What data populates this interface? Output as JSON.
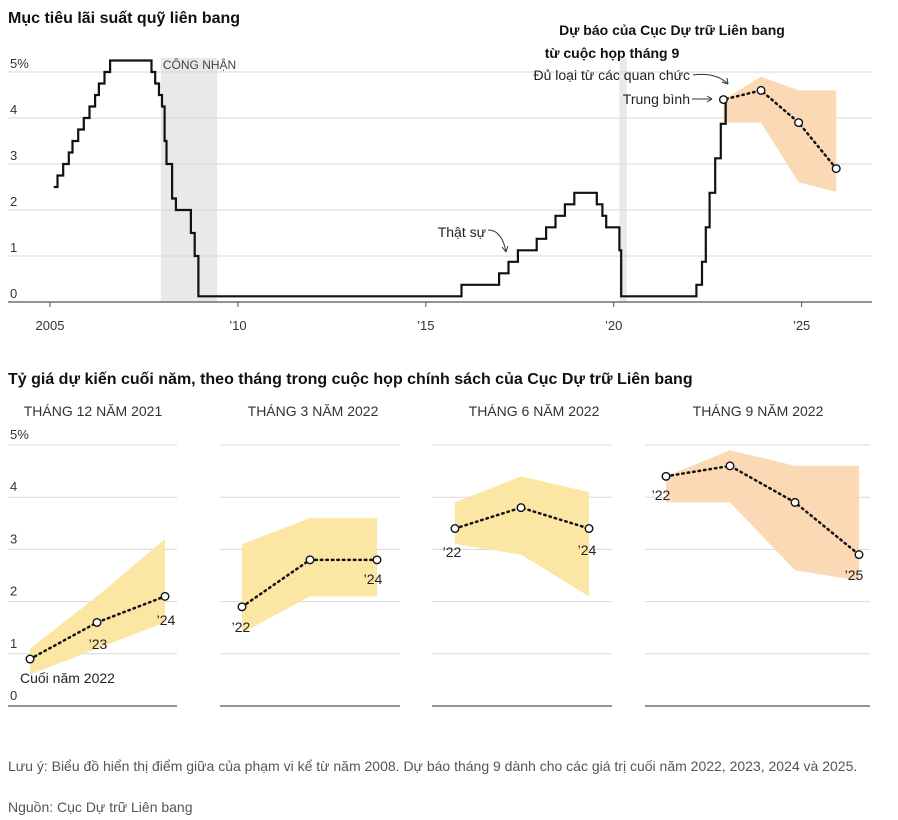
{
  "title": "Mục tiêu lãi suất quỹ liên bang",
  "subtitle": "Tỷ giá dự kiến cuối năm, theo tháng trong cuộc họp chính sách của Cục Dự trữ Liên bang",
  "note": "Lưu ý: Biểu đồ hiển thị điểm giữa của phạm vi kể từ năm 2008. Dự báo tháng 9 dành cho các giá trị cuối năm 2022, 2023, 2024 và 2025.",
  "source": "Nguồn: Cục Dự trữ Liên bang",
  "colors": {
    "line": "#111111",
    "recession": "#e8e9eb",
    "range_orange": "#fbd9b4",
    "range_yellow": "#fbe7a3",
    "grid": "#d8d8d8"
  },
  "chart_data": [
    {
      "type": "line",
      "title": "Mục tiêu lãi suất quỹ liên bang",
      "ylim": [
        0,
        5
      ],
      "y_ticks": [
        "5%",
        "4",
        "3",
        "2",
        "1",
        "0"
      ],
      "xlim": [
        2004.8,
        2027.0
      ],
      "x_ticks": [
        {
          "value": 2005,
          "label": "2005"
        },
        {
          "value": 2010,
          "label": "’10"
        },
        {
          "value": 2015,
          "label": "’15"
        },
        {
          "value": 2020,
          "label": "’20"
        },
        {
          "value": 2025,
          "label": "’25"
        }
      ],
      "shaded": [
        {
          "start": 2007.95,
          "end": 2009.45,
          "label": "CÔNG NHẬN"
        },
        {
          "start": 2020.15,
          "end": 2020.35,
          "label": ""
        }
      ],
      "actual_label": "Thật sự",
      "actual": [
        [
          2005.1,
          2.5
        ],
        [
          2005.2,
          2.75
        ],
        [
          2005.35,
          3.0
        ],
        [
          2005.5,
          3.25
        ],
        [
          2005.6,
          3.5
        ],
        [
          2005.75,
          3.75
        ],
        [
          2005.9,
          4.0
        ],
        [
          2006.05,
          4.25
        ],
        [
          2006.2,
          4.5
        ],
        [
          2006.3,
          4.75
        ],
        [
          2006.45,
          5.0
        ],
        [
          2006.6,
          5.25
        ],
        [
          2007.6,
          5.25
        ],
        [
          2007.7,
          5.0
        ],
        [
          2007.8,
          4.75
        ],
        [
          2007.9,
          4.5
        ],
        [
          2007.98,
          4.25
        ],
        [
          2008.05,
          3.5
        ],
        [
          2008.1,
          3.0
        ],
        [
          2008.25,
          2.25
        ],
        [
          2008.35,
          2.0
        ],
        [
          2008.75,
          1.5
        ],
        [
          2008.85,
          1.0
        ],
        [
          2008.95,
          0.125
        ],
        [
          2015.95,
          0.375
        ],
        [
          2016.95,
          0.625
        ],
        [
          2017.2,
          0.875
        ],
        [
          2017.45,
          1.125
        ],
        [
          2017.95,
          1.375
        ],
        [
          2018.2,
          1.625
        ],
        [
          2018.45,
          1.875
        ],
        [
          2018.7,
          2.125
        ],
        [
          2018.95,
          2.375
        ],
        [
          2019.55,
          2.125
        ],
        [
          2019.7,
          1.875
        ],
        [
          2019.8,
          1.625
        ],
        [
          2020.15,
          1.125
        ],
        [
          2020.2,
          0.125
        ],
        [
          2022.2,
          0.375
        ],
        [
          2022.35,
          0.875
        ],
        [
          2022.45,
          1.625
        ],
        [
          2022.55,
          2.375
        ],
        [
          2022.7,
          3.125
        ],
        [
          2022.85,
          3.875
        ],
        [
          2022.98,
          4.375
        ]
      ],
      "median_label": "Trung bình",
      "range_label": "Đủ loại từ các quan chức",
      "projection_title": [
        "Dự báo của Cục Dự trữ Liên bang",
        "từ cuộc họp tháng 9"
      ],
      "median": [
        {
          "x": 2023.0,
          "y": 4.4
        },
        {
          "x": 2024.0,
          "y": 4.6
        },
        {
          "x": 2025.0,
          "y": 3.9
        },
        {
          "x": 2026.0,
          "y": 2.9
        }
      ],
      "range": [
        {
          "x": 2023.0,
          "lo": 3.9,
          "hi": 4.4
        },
        {
          "x": 2024.0,
          "lo": 3.9,
          "hi": 4.9
        },
        {
          "x": 2025.0,
          "lo": 2.6,
          "hi": 4.6
        },
        {
          "x": 2026.0,
          "lo": 2.4,
          "hi": 4.6
        }
      ]
    },
    {
      "type": "line",
      "title": "THÁNG 12 NĂM 2021",
      "ylim": [
        0,
        5
      ],
      "y_ticks": [
        "5%",
        "4",
        "3",
        "2",
        "1",
        "0"
      ],
      "median": [
        {
          "x": 2022,
          "y": 0.9,
          "label": "Cuối năm 2022"
        },
        {
          "x": 2023,
          "y": 1.6,
          "label": "’23"
        },
        {
          "x": 2024,
          "y": 2.1,
          "label": "’24"
        }
      ],
      "range": [
        {
          "x": 2022,
          "lo": 0.6,
          "hi": 1.1
        },
        {
          "x": 2023,
          "lo": 1.1,
          "hi": 2.1
        },
        {
          "x": 2024,
          "lo": 1.6,
          "hi": 3.2
        }
      ]
    },
    {
      "type": "line",
      "title": "THÁNG 3 NĂM 2022",
      "median": [
        {
          "x": 2022,
          "y": 1.9,
          "label": "’22"
        },
        {
          "x": 2023,
          "y": 2.8,
          "label": ""
        },
        {
          "x": 2024,
          "y": 2.8,
          "label": "’24"
        }
      ],
      "range": [
        {
          "x": 2022,
          "lo": 1.4,
          "hi": 3.1
        },
        {
          "x": 2023,
          "lo": 2.1,
          "hi": 3.6
        },
        {
          "x": 2024,
          "lo": 2.1,
          "hi": 3.6
        }
      ]
    },
    {
      "type": "line",
      "title": "THÁNG 6 NĂM 2022",
      "median": [
        {
          "x": 2022,
          "y": 3.4,
          "label": "’22"
        },
        {
          "x": 2023,
          "y": 3.8,
          "label": ""
        },
        {
          "x": 2024,
          "y": 3.4,
          "label": "’24"
        }
      ],
      "range": [
        {
          "x": 2022,
          "lo": 3.1,
          "hi": 3.9
        },
        {
          "x": 2023,
          "lo": 2.9,
          "hi": 4.4
        },
        {
          "x": 2024,
          "lo": 2.1,
          "hi": 4.1
        }
      ]
    },
    {
      "type": "line",
      "title": "THÁNG 9 NĂM 2022",
      "median": [
        {
          "x": 2022,
          "y": 4.4,
          "label": "’22"
        },
        {
          "x": 2023,
          "y": 4.6,
          "label": ""
        },
        {
          "x": 2024,
          "y": 3.9,
          "label": ""
        },
        {
          "x": 2025,
          "y": 2.9,
          "label": "’25"
        }
      ],
      "range": [
        {
          "x": 2022,
          "lo": 3.9,
          "hi": 4.4
        },
        {
          "x": 2023,
          "lo": 3.9,
          "hi": 4.9
        },
        {
          "x": 2024,
          "lo": 2.6,
          "hi": 4.6
        },
        {
          "x": 2025,
          "lo": 2.4,
          "hi": 4.6
        }
      ]
    }
  ]
}
